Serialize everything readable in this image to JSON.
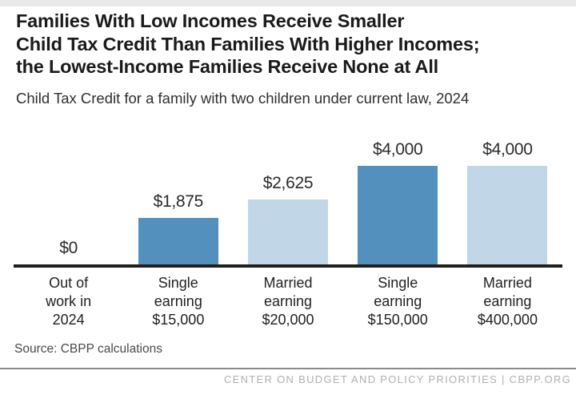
{
  "header": {
    "top_strip_color": "#e9e9e9"
  },
  "source_note": "Source: CBPP calculations",
  "footer": {
    "text": "CENTER ON BUDGET AND POLICY PRIORITIES | CBPP.ORG",
    "rule_color": "#8a8a8a",
    "text_color": "#b0b0b0"
  },
  "chart_data": {
    "type": "bar",
    "title": "Families With Low Incomes Receive Smaller\nChild Tax Credit Than Families With Higher Incomes;\nthe Lowest-Income Families Receive None at All",
    "subtitle": "Child Tax Credit for a family with two children under current law, 2024",
    "categories": [
      "Out of\nwork in\n2024",
      "Single\nearning\n$15,000",
      "Married\nearning\n$20,000",
      "Single\nearning\n$150,000",
      "Married\nearning\n$400,000"
    ],
    "values": [
      0,
      1875,
      2625,
      4000,
      4000
    ],
    "value_labels": [
      "$0",
      "$1,875",
      "$2,625",
      "$4,000",
      "$4,000"
    ],
    "bar_colors": [
      "#5490be",
      "#5490be",
      "#c1d7e8",
      "#5490be",
      "#c1d7e8"
    ],
    "colors": {
      "dark_blue": "#5490be",
      "light_blue": "#c1d7e8",
      "axis": "#1f1f1f"
    },
    "xlabel": "",
    "ylabel": "",
    "ylim": [
      0,
      4000
    ],
    "grid": false,
    "legend": "none",
    "value_labels_position": "above bars"
  }
}
